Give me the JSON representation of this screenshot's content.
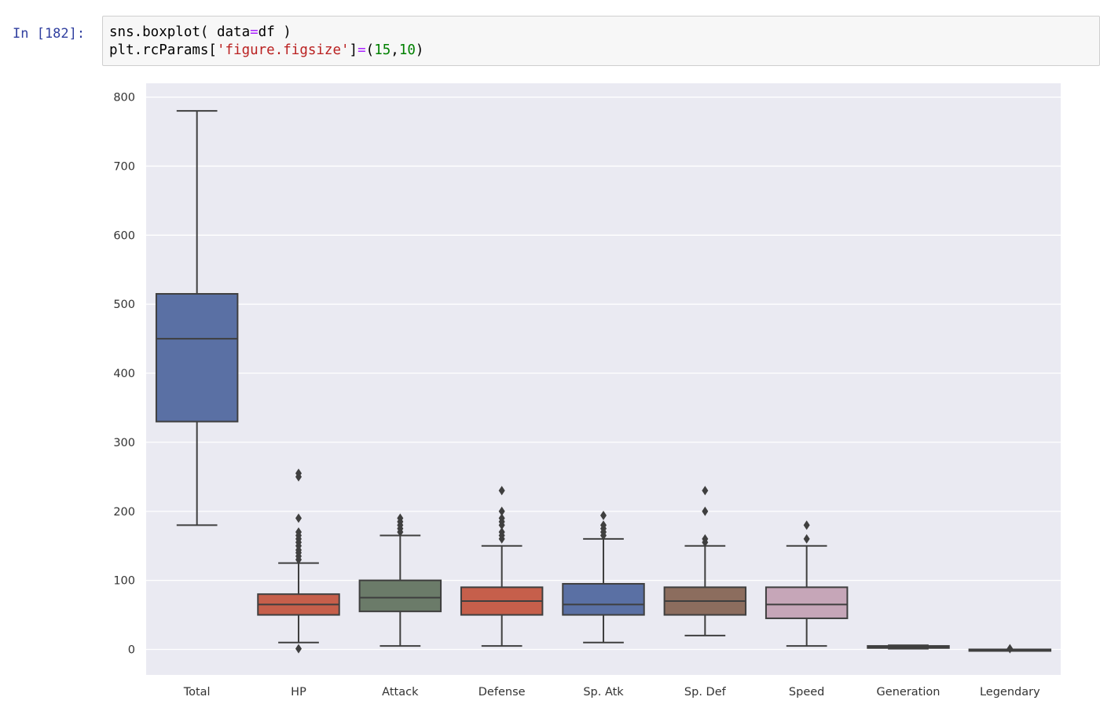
{
  "cell": {
    "prompt": "In [182]:",
    "line1_a": "sns.boxplot( data",
    "line1_eq": "=",
    "line1_b": "df )",
    "line2_a": "plt.rcParams[",
    "line2_str": "'figure.figsize'",
    "line2_b": "]",
    "line2_eq": "=",
    "line2_c": "(",
    "line2_num1": "15",
    "line2_comma": ",",
    "line2_num2": "10",
    "line2_d": ")"
  },
  "colors": {
    "plot_bg": "#eaeaf2",
    "grid": "#ffffff",
    "line": "#3f3f3f",
    "tick_text": "#333333",
    "code_equals": "#aa22ff",
    "code_string": "#ba2121",
    "code_number": "#008000"
  },
  "chart_data": {
    "type": "boxplot",
    "ylim": [
      -37,
      820
    ],
    "yticks": [
      0,
      100,
      200,
      300,
      400,
      500,
      600,
      700,
      800
    ],
    "grid": true,
    "series": [
      {
        "name": "Total",
        "color": "#5a70a4",
        "q1": 330,
        "median": 450,
        "q3": 515,
        "whislo": 180,
        "whishi": 780,
        "fliers": []
      },
      {
        "name": "HP",
        "color": "#c65f4b",
        "q1": 50,
        "median": 65,
        "q3": 80,
        "whislo": 10,
        "whishi": 125,
        "fliers": [
          1,
          130,
          135,
          140,
          144,
          150,
          155,
          160,
          165,
          170,
          190,
          250,
          255
        ]
      },
      {
        "name": "Attack",
        "color": "#6b7b69",
        "q1": 55,
        "median": 75,
        "q3": 100,
        "whislo": 5,
        "whishi": 165,
        "fliers": [
          170,
          175,
          180,
          185,
          190
        ]
      },
      {
        "name": "Defense",
        "color": "#c65f4b",
        "q1": 50,
        "median": 70,
        "q3": 90,
        "whislo": 5,
        "whishi": 150,
        "fliers": [
          160,
          165,
          170,
          180,
          185,
          190,
          200,
          230
        ]
      },
      {
        "name": "Sp. Atk",
        "color": "#5a70a4",
        "q1": 50,
        "median": 65,
        "q3": 95,
        "whislo": 10,
        "whishi": 160,
        "fliers": [
          165,
          170,
          175,
          180,
          194
        ]
      },
      {
        "name": "Sp. Def",
        "color": "#8c6d5e",
        "q1": 50,
        "median": 70,
        "q3": 90,
        "whislo": 20,
        "whishi": 150,
        "fliers": [
          155,
          160,
          200,
          230
        ]
      },
      {
        "name": "Speed",
        "color": "#c6a6b8",
        "q1": 45,
        "median": 65,
        "q3": 90,
        "whislo": 5,
        "whishi": 150,
        "fliers": [
          160,
          180
        ]
      },
      {
        "name": "Generation",
        "color": "#6b7b69",
        "q1": 2,
        "median": 3,
        "q3": 5,
        "whislo": 1,
        "whishi": 6,
        "fliers": []
      },
      {
        "name": "Legendary",
        "color": "#c65f4b",
        "q1": 0,
        "median": 0,
        "q3": 0,
        "whislo": 0,
        "whishi": 0,
        "fliers": [
          1
        ]
      }
    ]
  }
}
